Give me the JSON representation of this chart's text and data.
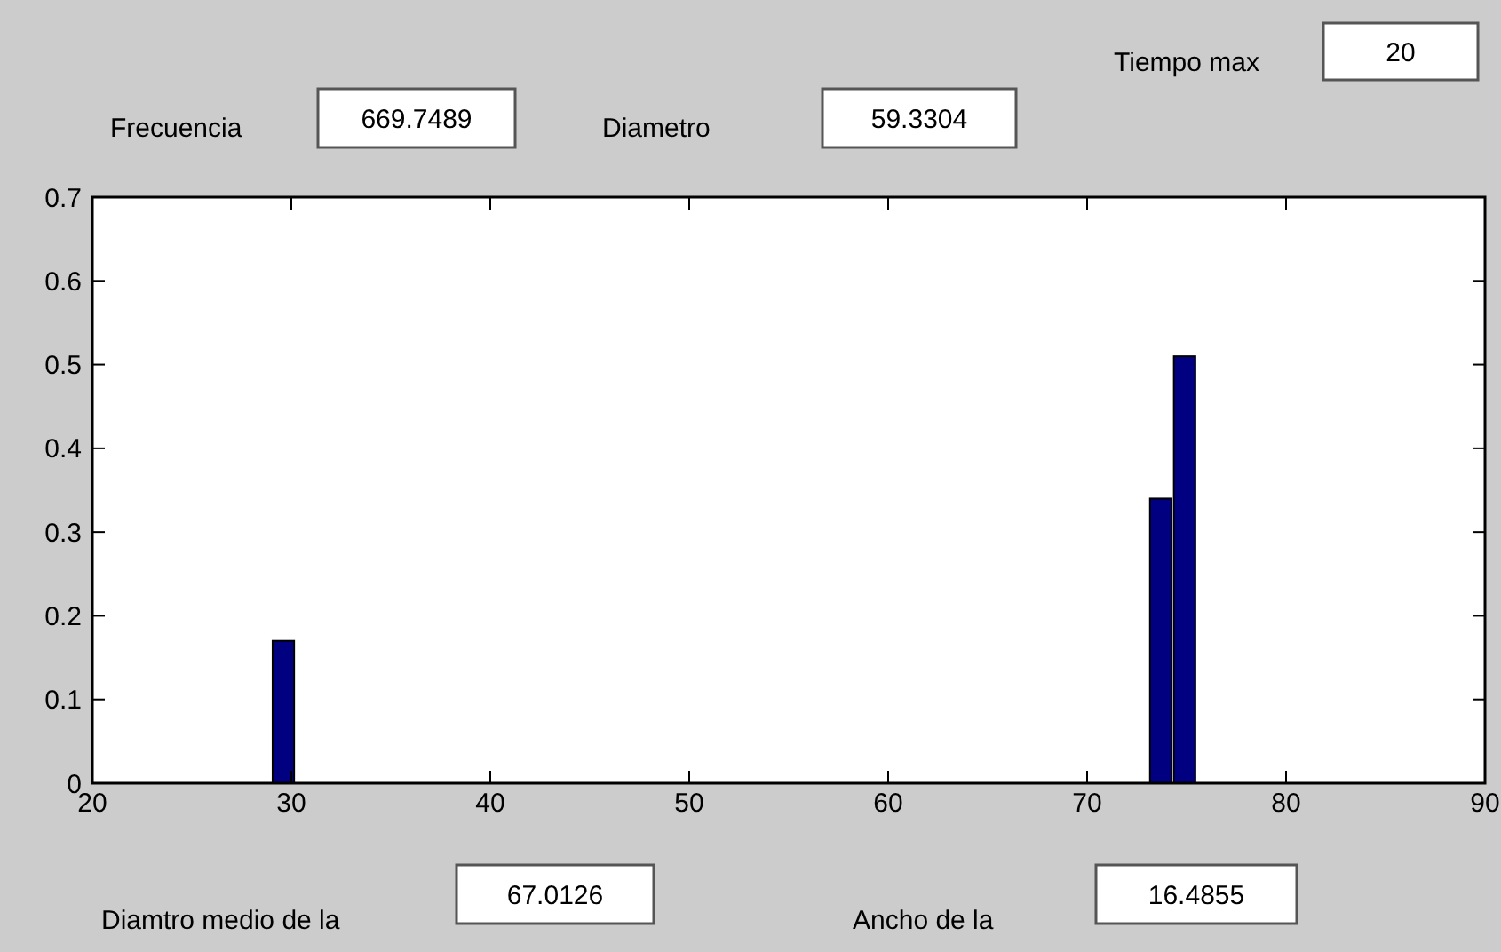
{
  "chart_data": {
    "type": "bar",
    "x": [
      29.6,
      73.7,
      74.9
    ],
    "values": [
      0.17,
      0.34,
      0.51
    ],
    "color": "#000080",
    "xlim": [
      20,
      90
    ],
    "xticks": [
      20,
      30,
      40,
      50,
      60,
      70,
      80,
      90
    ],
    "ylim": [
      0,
      0.7
    ],
    "yticks": [
      0,
      0.1,
      0.2,
      0.3,
      0.4,
      0.5,
      0.6,
      0.7
    ],
    "grid": false,
    "annotations": [
      "Tiempo max",
      "20",
      "Frecuencia",
      "669.7489",
      "Diametro",
      "59.3304",
      "Diamtro medio de la",
      "67.0126",
      "Ancho de la",
      "16.4855"
    ]
  }
}
